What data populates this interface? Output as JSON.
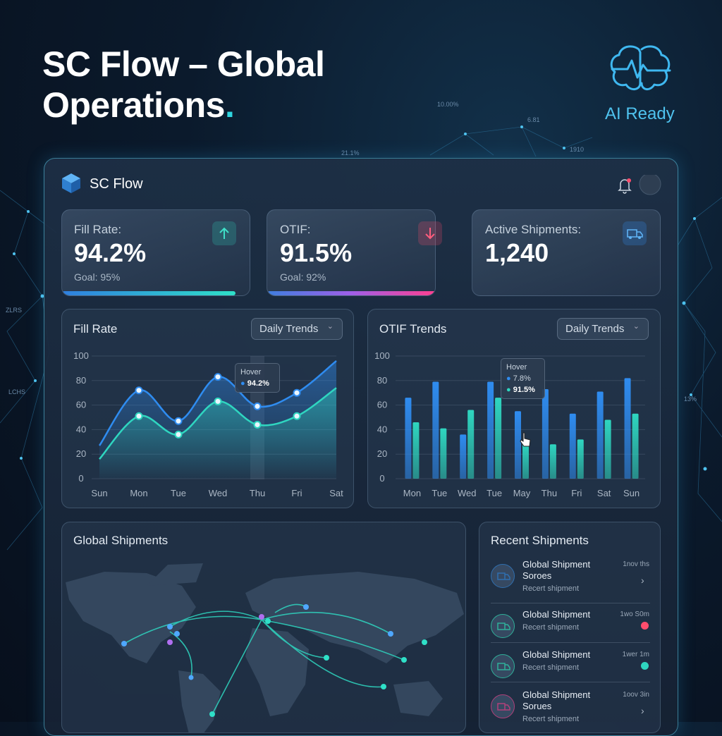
{
  "header": {
    "title_line1": "SC Flow – Global",
    "title_line2": "Operations",
    "title_end": ".",
    "badge": "AI Ready"
  },
  "background_labels": [
    "10.00%",
    "6.81",
    "1910",
    "21.1%",
    "ZLRS",
    "LCHS",
    "13%"
  ],
  "app": {
    "brand": "SC Flow"
  },
  "kpis": [
    {
      "label": "Fill Rate:",
      "value": "94.2%",
      "goal": "Goal: 95%"
    },
    {
      "label": "OTIF:",
      "value": "91.5%",
      "goal": "Goal: 92%"
    },
    {
      "label": "Active Shipments:",
      "value": "1,240"
    }
  ],
  "chart_data": [
    {
      "type": "line",
      "title": "Fill Rate",
      "dropdown": "Daily Trends",
      "categories": [
        "Sun",
        "Mon",
        "Tue",
        "Wed",
        "Thu",
        "Fri",
        "Sat"
      ],
      "series": [
        {
          "color": "#2f8cf0",
          "values": [
            27,
            72,
            47,
            83,
            59,
            70,
            96
          ]
        },
        {
          "color": "#2fd6c0",
          "values": [
            16,
            51,
            36,
            63,
            44,
            51,
            74
          ]
        }
      ],
      "ylim": [
        0,
        100
      ],
      "yticks": [
        0,
        20,
        40,
        60,
        80,
        100
      ],
      "grid": true,
      "tooltip": {
        "title": "Hover",
        "lines": [
          "94.2%"
        ]
      }
    },
    {
      "type": "bar",
      "title": "OTIF Trends",
      "dropdown": "Daily Trends",
      "categories": [
        "Mon",
        "Tue",
        "Wed",
        "Tue",
        "May",
        "Thu",
        "Fri",
        "Sat",
        "Sun"
      ],
      "series": [
        {
          "color": "#2f8cf0",
          "values": [
            66,
            79,
            36,
            79,
            55,
            73,
            53,
            71,
            82
          ]
        },
        {
          "color": "#2fd6c0",
          "values": [
            46,
            41,
            56,
            66,
            28,
            28,
            32,
            48,
            53
          ]
        }
      ],
      "ylim": [
        0,
        100
      ],
      "yticks": [
        0,
        20,
        40,
        60,
        80,
        100
      ],
      "grid": true,
      "tooltip": {
        "title": "Hover",
        "lines": [
          "7.8%",
          "91.5%"
        ]
      }
    }
  ],
  "map": {
    "title": "Global Shipments"
  },
  "recent": {
    "title": "Recent Shipments",
    "items": [
      {
        "title": "Global Shipment Soroes",
        "time": "1nov ths",
        "subtitle": "Recert shipment"
      },
      {
        "title": "Global Shipment",
        "time": "1wo S0m",
        "subtitle": "Recert shipment"
      },
      {
        "title": "Global Shipment",
        "time": "1wer 1m",
        "subtitle": "Recert shipment"
      },
      {
        "title": "Global Shipment Sorues",
        "time": "1oov 3in",
        "subtitle": "Recert shipment"
      }
    ]
  }
}
